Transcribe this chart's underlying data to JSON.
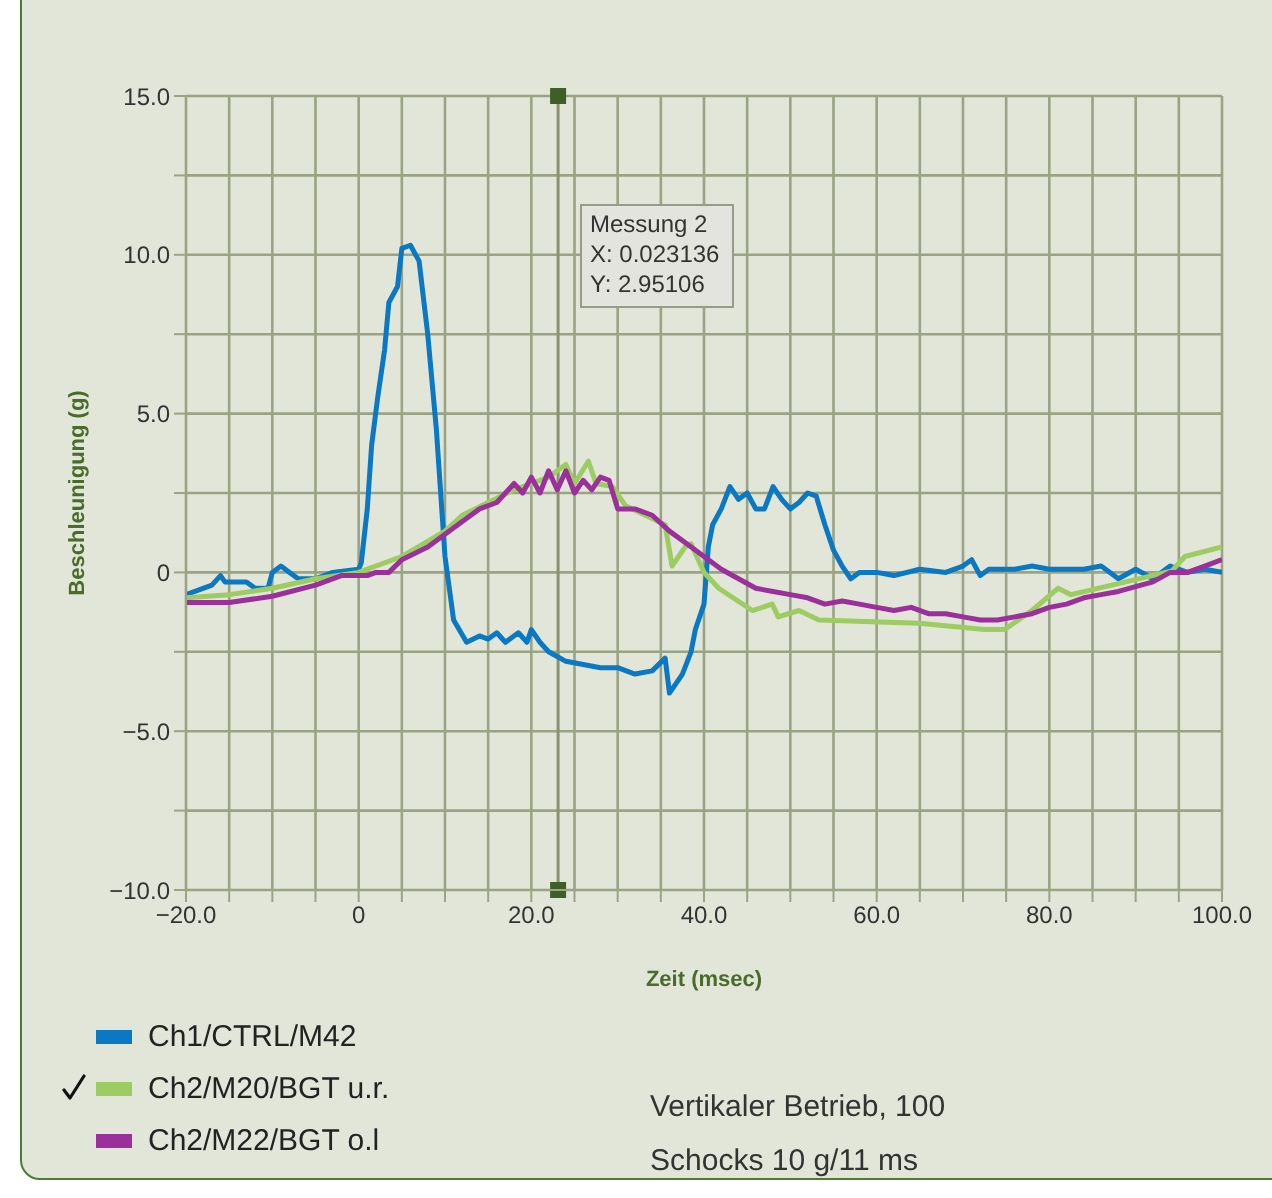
{
  "chart_data": {
    "type": "line",
    "xlabel": "Zeit (msec)",
    "ylabel": "Beschleunigung (g)",
    "xlim": [
      -20,
      100
    ],
    "ylim": [
      -10,
      15
    ],
    "xticks": [
      {
        "value": -20,
        "label": "−20.0"
      },
      {
        "value": -15,
        "label": null
      },
      {
        "value": -10,
        "label": null
      },
      {
        "value": -5,
        "label": null
      },
      {
        "value": 0,
        "label": "0"
      },
      {
        "value": 5,
        "label": null
      },
      {
        "value": 10,
        "label": null
      },
      {
        "value": 15,
        "label": null
      },
      {
        "value": 20,
        "label": "20.0"
      },
      {
        "value": 25,
        "label": null
      },
      {
        "value": 30,
        "label": null
      },
      {
        "value": 35,
        "label": null
      },
      {
        "value": 40,
        "label": "40.0"
      },
      {
        "value": 45,
        "label": null
      },
      {
        "value": 50,
        "label": null
      },
      {
        "value": 55,
        "label": null
      },
      {
        "value": 60,
        "label": "60.0"
      },
      {
        "value": 65,
        "label": null
      },
      {
        "value": 70,
        "label": null
      },
      {
        "value": 75,
        "label": null
      },
      {
        "value": 80,
        "label": "80.0"
      },
      {
        "value": 85,
        "label": null
      },
      {
        "value": 90,
        "label": null
      },
      {
        "value": 95,
        "label": null
      },
      {
        "value": 100,
        "label": "100.0"
      }
    ],
    "yticks": [
      {
        "value": -10,
        "label": "−10.0"
      },
      {
        "value": -7.5,
        "label": null
      },
      {
        "value": -5,
        "label": "−5.0"
      },
      {
        "value": -2.5,
        "label": null
      },
      {
        "value": 0,
        "label": "0"
      },
      {
        "value": 2.5,
        "label": null
      },
      {
        "value": 5,
        "label": "5.0"
      },
      {
        "value": 7.5,
        "label": null
      },
      {
        "value": 10,
        "label": "10.0"
      },
      {
        "value": 12.5,
        "label": null
      },
      {
        "value": 15,
        "label": "15.0"
      }
    ],
    "grid": true,
    "legend": "bottom left",
    "marker": "none",
    "line_style": "solid",
    "ref_lines": [
      {
        "axis": "x",
        "value": 23.1,
        "color": "#8a9270"
      }
    ],
    "annotations": [
      "Messung 2\nX: 0.023136\nY: 2.95106",
      "Vertikaler Betrieb, 100\nSchocks 10 g/11 ms"
    ],
    "series": [
      {
        "name": "Ch1/CTRL/M42",
        "color": "#0a78c2",
        "x": [
          -20,
          -17,
          -16,
          -15.5,
          -13,
          -12,
          -10.5,
          -10,
          -9,
          -8,
          -7,
          -5,
          -3,
          0,
          0.3,
          1,
          1.5,
          2.2,
          3,
          3.5,
          4.5,
          5,
          6,
          7,
          8,
          9,
          10,
          11,
          12.5,
          14,
          15,
          16,
          17,
          18.5,
          19.5,
          20,
          21,
          22,
          24,
          26,
          28,
          30,
          32,
          34,
          35.5,
          36,
          37.5,
          38.5,
          39,
          40,
          40.5,
          41,
          42,
          43,
          44,
          45,
          46,
          47,
          48,
          49,
          50,
          51,
          52,
          53,
          54,
          55,
          56,
          57,
          58,
          60,
          62,
          65,
          68,
          70,
          71,
          72,
          73,
          76,
          78,
          80,
          84,
          86,
          88,
          90,
          92,
          94,
          96,
          98,
          100
        ],
        "values": [
          -0.7,
          -0.4,
          -0.1,
          -0.3,
          -0.3,
          -0.5,
          -0.5,
          0,
          0.2,
          0,
          -0.2,
          -0.2,
          0,
          0.1,
          0.3,
          2,
          4,
          5.5,
          7,
          8.5,
          9,
          10.2,
          10.3,
          9.8,
          7.5,
          4.5,
          0.5,
          -1.5,
          -2.2,
          -2,
          -2.1,
          -1.9,
          -2.2,
          -1.9,
          -2.2,
          -1.8,
          -2.2,
          -2.5,
          -2.8,
          -2.9,
          -3,
          -3,
          -3.2,
          -3.1,
          -2.7,
          -3.8,
          -3.2,
          -2.5,
          -1.8,
          -1,
          0.8,
          1.5,
          2,
          2.7,
          2.3,
          2.5,
          2,
          2,
          2.7,
          2.3,
          2,
          2.2,
          2.5,
          2.4,
          1.5,
          0.7,
          0.2,
          -0.2,
          0,
          0,
          -0.1,
          0.1,
          0,
          0.2,
          0.4,
          -0.1,
          0.1,
          0.1,
          0.2,
          0.1,
          0.1,
          0.2,
          -0.2,
          0.1,
          -0.2,
          0.2,
          0,
          0.1,
          0
        ]
      },
      {
        "name": "Ch2/M20/BGT u.r.",
        "color": "#9ccc62",
        "x": [
          -20,
          -15,
          -10,
          -5,
          0,
          5,
          10,
          12,
          15,
          18,
          20,
          22,
          24,
          25,
          26.6,
          27.5,
          29.4,
          30.9,
          35.5,
          36.3,
          37.8,
          38.5,
          40,
          41.7,
          45.6,
          47.9,
          48.6,
          51,
          53.3,
          64.9,
          72.5,
          74.8,
          78,
          81,
          82.5,
          89.6,
          94.2,
          95.7,
          100
        ],
        "values": [
          -0.8,
          -0.7,
          -0.5,
          -0.2,
          0,
          0.5,
          1.3,
          1.8,
          2.2,
          2.6,
          2.8,
          3,
          3.4,
          2.8,
          3.5,
          2.8,
          2.7,
          2.1,
          1.5,
          0.2,
          0.8,
          0.9,
          0,
          -0.5,
          -1.2,
          -1,
          -1.4,
          -1.2,
          -1.5,
          -1.6,
          -1.8,
          -1.8,
          -1.2,
          -0.5,
          -0.7,
          -0.25,
          0.05,
          0.5,
          0.8
        ]
      },
      {
        "name": "Ch2/M22/BGT o.l",
        "color": "#9b2f9b",
        "x": [
          -20,
          -15,
          -10,
          -5,
          -2,
          1,
          2,
          3.5,
          5,
          8,
          10,
          12,
          14,
          16,
          18,
          19,
          20,
          21,
          22,
          23,
          24,
          25,
          26,
          27,
          28,
          29,
          30,
          32,
          34,
          36,
          38,
          40,
          42,
          44,
          46,
          48,
          50,
          52,
          54,
          56,
          58,
          60,
          62,
          64,
          66,
          68,
          70,
          72,
          74,
          76,
          78,
          80,
          82,
          84,
          86,
          88,
          90,
          92,
          94,
          96,
          98,
          100
        ],
        "values": [
          -0.95,
          -0.95,
          -0.75,
          -0.4,
          -0.1,
          -0.1,
          0,
          0,
          0.4,
          0.8,
          1.2,
          1.6,
          2,
          2.2,
          2.8,
          2.5,
          3,
          2.5,
          3.2,
          2.6,
          3.2,
          2.5,
          2.9,
          2.6,
          3,
          2.9,
          2,
          2,
          1.8,
          1.3,
          0.9,
          0.5,
          0.1,
          -0.2,
          -0.5,
          -0.6,
          -0.7,
          -0.8,
          -1,
          -0.9,
          -1,
          -1.1,
          -1.2,
          -1.1,
          -1.3,
          -1.3,
          -1.4,
          -1.5,
          -1.5,
          -1.4,
          -1.3,
          -1.1,
          -1,
          -0.8,
          -0.7,
          -0.6,
          -0.45,
          -0.3,
          0,
          0,
          0.2,
          0.4
        ]
      }
    ]
  }
}
